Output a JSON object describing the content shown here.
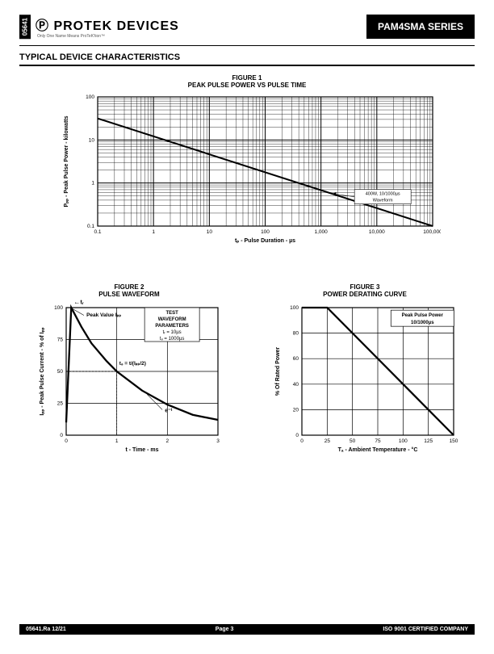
{
  "doc_id": "05641",
  "logo_text": "PROTEK DEVICES",
  "logo_tagline": "Only One Name Means ProTeK'tion™",
  "series": "PAM4SMA SERIES",
  "section_title": "TYPICAL DEVICE CHARACTERISTICS",
  "footer": {
    "left": "05641.Ra 12/21",
    "center": "Page 3",
    "right": "ISO 9001 CERTIFIED COMPANY"
  },
  "fig1": {
    "title": "FIGURE 1",
    "subtitle": "PEAK PULSE POWER VS PULSE TIME",
    "xlabel": "tₚ - Pulse Duration - µs",
    "ylabel": "Pₚₚ - Peak Pulse Power - kilowatts",
    "xlog_ticks": [
      "0.1",
      "1",
      "10",
      "100",
      "1,000",
      "10,000",
      "100,000"
    ],
    "ylog_ticks": [
      "0.1",
      "1",
      "10",
      "100"
    ],
    "annotation": "400W, 10/1000µs\nWaveform",
    "line_start_logx": -1,
    "line_start_logy": 1.5,
    "line_end_logx": 5,
    "line_end_logy": -1.0,
    "arrow_at_logx": 3.2,
    "colors": {
      "grid": "#000",
      "line": "#000",
      "bg": "#fff"
    }
  },
  "fig2": {
    "title": "FIGURE 2",
    "subtitle": "PULSE WAVEFORM",
    "xlabel": "t - Time - ms",
    "ylabel": "Iₚₚ - Peak Pulse Current - % of Iₚₚ",
    "xlim": [
      0,
      3
    ],
    "ylim": [
      0,
      100
    ],
    "xstep": 1,
    "ystep": 25,
    "xticks": [
      "0",
      "1",
      "2",
      "3"
    ],
    "yticks": [
      "0",
      "25",
      "50",
      "75",
      "100"
    ],
    "curve": [
      [
        0,
        10
      ],
      [
        0.1,
        100
      ],
      [
        0.3,
        85
      ],
      [
        0.5,
        72
      ],
      [
        0.8,
        58
      ],
      [
        1.0,
        50
      ],
      [
        1.5,
        35
      ],
      [
        2.0,
        24
      ],
      [
        2.5,
        16
      ],
      [
        3.0,
        12
      ]
    ],
    "box_lines": [
      "TEST",
      "WAVEFORM",
      "PARAMETERS",
      "tᵣ = 10µs",
      "tₔ = 1000µs"
    ],
    "ann_tr": "tᵣ",
    "ann_peak": "Peak Value Iₚₚ",
    "ann_td": "tₔ = t/(Iₚₚ/2)",
    "ann_et": "e⁻ᵗ",
    "colors": {
      "grid": "#000",
      "line": "#000",
      "bg": "#fff"
    }
  },
  "fig3": {
    "title": "FIGURE 3",
    "subtitle": "POWER DERATING CURVE",
    "xlabel": "Tₐ - Ambient Temperature - °C",
    "ylabel": "% Of Rated Power",
    "xlim": [
      0,
      150
    ],
    "ylim": [
      0,
      100
    ],
    "xstep": 25,
    "ystep": 20,
    "xticks": [
      "0",
      "25",
      "50",
      "75",
      "100",
      "125",
      "150"
    ],
    "yticks": [
      "0",
      "20",
      "40",
      "60",
      "80",
      "100"
    ],
    "line": [
      [
        25,
        100
      ],
      [
        150,
        0
      ]
    ],
    "box_lines": [
      "Peak Pulse Power",
      "10/1000µs"
    ],
    "colors": {
      "grid": "#000",
      "line": "#000",
      "bg": "#fff"
    }
  }
}
